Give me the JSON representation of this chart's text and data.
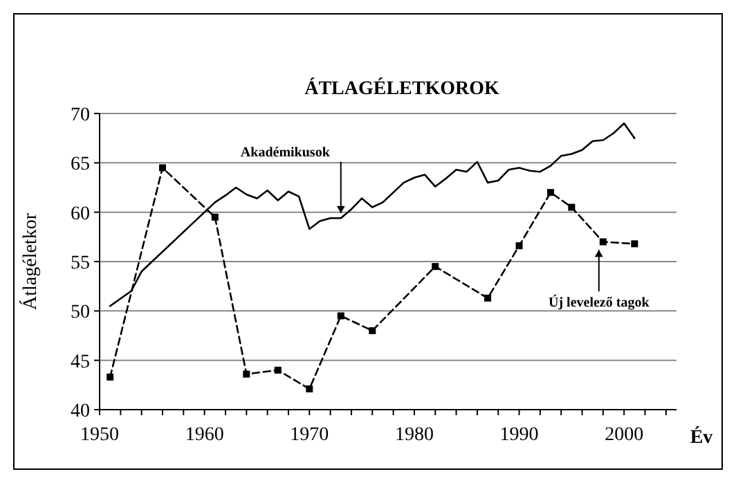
{
  "chart_data": {
    "type": "line",
    "title": "ÁTLAGÉLETKOROK",
    "xlabel": "Év",
    "ylabel": "Átlagéletkor",
    "xlim": [
      1950,
      2005
    ],
    "xticks": [
      1950,
      {
        "value": 1952,
        "label": null
      },
      {
        "value": 1954,
        "label": null
      },
      {
        "value": 1956,
        "label": null
      },
      {
        "value": 1958,
        "label": null
      },
      1960,
      {
        "value": 1962,
        "label": null
      },
      {
        "value": 1964,
        "label": null
      },
      {
        "value": 1966,
        "label": null
      },
      {
        "value": 1968,
        "label": null
      },
      1970,
      {
        "value": 1972,
        "label": null
      },
      {
        "value": 1974,
        "label": null
      },
      {
        "value": 1976,
        "label": null
      },
      {
        "value": 1978,
        "label": null
      },
      1980,
      {
        "value": 1982,
        "label": null
      },
      {
        "value": 1984,
        "label": null
      },
      {
        "value": 1986,
        "label": null
      },
      {
        "value": 1988,
        "label": null
      },
      1990,
      {
        "value": 1992,
        "label": null
      },
      {
        "value": 1994,
        "label": null
      },
      {
        "value": 1996,
        "label": null
      },
      {
        "value": 1998,
        "label": null
      },
      2000,
      {
        "value": 2002,
        "label": null
      },
      {
        "value": 2004,
        "label": null
      }
    ],
    "ylim": [
      40,
      70
    ],
    "yticks": [
      40,
      45,
      50,
      55,
      60,
      65,
      70
    ],
    "grid": "y",
    "series": [
      {
        "color": "#000000",
        "marker": "none",
        "line_style": "solid",
        "x": [
          1951,
          1953,
          1954,
          1961,
          1962,
          1963,
          1964,
          1965,
          1966,
          1967,
          1968,
          1969,
          1970,
          1971,
          1972,
          1973,
          1974,
          1975,
          1976,
          1977,
          1978,
          1979,
          1980,
          1981,
          1982,
          1983,
          1984,
          1985,
          1986,
          1987,
          1988,
          1989,
          1990,
          1991,
          1992,
          1993,
          1994,
          1995,
          1996,
          1997,
          1998,
          1999,
          2000,
          2001
        ],
        "values": [
          50.5,
          52,
          54,
          61,
          61.7,
          62.5,
          61.8,
          61.4,
          62.2,
          61.2,
          62.1,
          61.6,
          58.3,
          59.1,
          59.4,
          59.4,
          60.3,
          61.4,
          60.5,
          61,
          62,
          63,
          63.5,
          63.8,
          62.6,
          63.4,
          64.3,
          64.1,
          65.1,
          63,
          63.2,
          64.3,
          64.5,
          64.2,
          64.1,
          64.7,
          65.7,
          65.9,
          66.3,
          67.2,
          67.3,
          68,
          69,
          67.5
        ]
      },
      {
        "color": "#000000",
        "marker": "square",
        "line_style": "dashed",
        "x": [
          1951,
          1956,
          1961,
          1964,
          1967,
          1970,
          1973,
          1976,
          1982,
          1987,
          1990,
          1993,
          1995,
          1998,
          2001
        ],
        "values": [
          43.3,
          64.5,
          59.5,
          43.6,
          44,
          42.1,
          49.5,
          48,
          54.5,
          51.3,
          56.6,
          62,
          60.5,
          57,
          56.8
        ]
      }
    ],
    "annotations": [
      {
        "text": "Akadémikusok",
        "x": 1973,
        "y": 59.5
      },
      {
        "text": "Új levelező tagok",
        "x": 1997.6,
        "y": 56.6
      }
    ]
  }
}
